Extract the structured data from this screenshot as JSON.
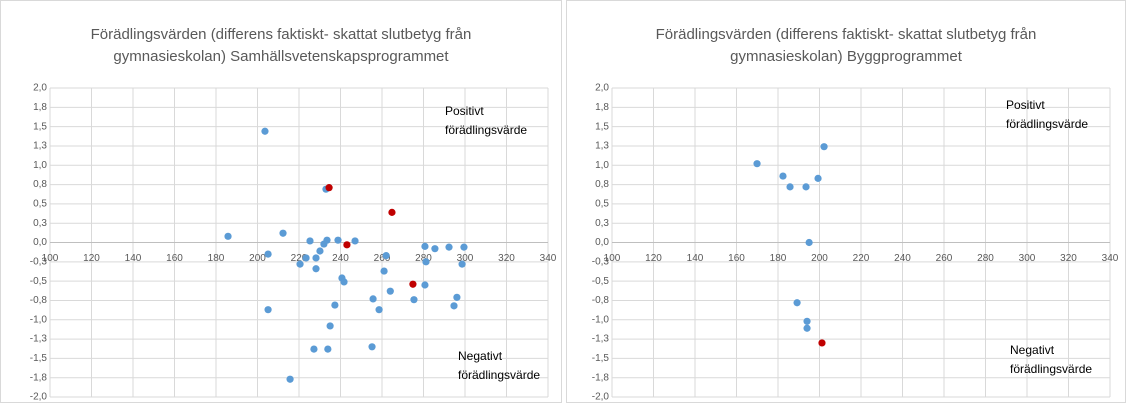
{
  "chart_data": [
    {
      "type": "scatter",
      "title": [
        "Förädlingsvärden (differens faktiskt- skattat slutbetyg från",
        "gymnasieskolan) Samhällsvetenskapsprogrammet"
      ],
      "annotations": [
        [
          "Positivt",
          "förädlingsvärde"
        ],
        [
          "Negativt",
          "förädlingsvärde"
        ]
      ],
      "xlim": [
        100,
        340
      ],
      "xticks": [
        100,
        120,
        140,
        160,
        180,
        200,
        220,
        240,
        260,
        280,
        300,
        320,
        340
      ],
      "ylim": [
        -2,
        2
      ],
      "yticks": [
        {
          "value": -2,
          "label": "-2,0"
        },
        {
          "value": -1.75,
          "label": "-1,8"
        },
        {
          "value": -1.5,
          "label": "-1,5"
        },
        {
          "value": -1.25,
          "label": "-1,3"
        },
        {
          "value": -1,
          "label": "-1,0"
        },
        {
          "value": -0.75,
          "label": "-0,8"
        },
        {
          "value": -0.5,
          "label": "-0,5"
        },
        {
          "value": -0.25,
          "label": "-0,3"
        },
        {
          "value": 0,
          "label": "0,0"
        },
        {
          "value": 0.25,
          "label": "0,3"
        },
        {
          "value": 0.5,
          "label": "0,5"
        },
        {
          "value": 0.75,
          "label": "0,8"
        },
        {
          "value": 1,
          "label": "1,0"
        },
        {
          "value": 1.25,
          "label": "1,3"
        },
        {
          "value": 1.5,
          "label": "1,5"
        },
        {
          "value": 1.75,
          "label": "1,8"
        },
        {
          "value": 2,
          "label": "2,0"
        }
      ],
      "grid": true,
      "series": [
        {
          "color": "#5b9bd5",
          "x": [
            185.8,
            203.6,
            212.3,
            205.1,
            205.1,
            225.3,
            220.5,
            223.4,
            228.2,
            228.2,
            230.1,
            232.0,
            233.0,
            233.5,
            238.8,
            235.0,
            237.3,
            240.7,
            241.7,
            247.0,
            227.2,
            233.9,
            215.7,
            255.2,
            255.7,
            258.6,
            261.0,
            262.0,
            264.0,
            275.4,
            280.7,
            281.2,
            280.7,
            285.5,
            292.3,
            294.7,
            296.1,
            298.6,
            299.5
          ],
          "values": [
            0.08,
            1.44,
            0.12,
            -0.15,
            -0.87,
            0.02,
            -0.28,
            -0.2,
            -0.2,
            -0.34,
            -0.11,
            -0.02,
            0.69,
            0.03,
            0.03,
            -1.08,
            -0.81,
            -0.46,
            -0.51,
            0.02,
            -1.38,
            -1.38,
            -1.77,
            -1.35,
            -0.73,
            -0.87,
            -0.37,
            -0.17,
            -0.63,
            -0.74,
            -0.05,
            -0.25,
            -0.55,
            -0.08,
            -0.06,
            -0.82,
            -0.71,
            -0.28,
            -0.06
          ]
        },
        {
          "color": "#c00000",
          "x": [
            234.5,
            243.1,
            264.8,
            274.9
          ],
          "values": [
            0.71,
            -0.03,
            0.39,
            -0.54
          ]
        }
      ]
    },
    {
      "type": "scatter",
      "title": [
        "Förädlingsvärden (differens faktiskt- skattat slutbetyg från",
        "gymnasieskolan) Byggprogrammet"
      ],
      "annotations": [
        [
          "Positivt",
          "förädlingsvärde"
        ],
        [
          "Negativt",
          "förädlingsvärde"
        ]
      ],
      "xlim": [
        100,
        340
      ],
      "xticks": [
        100,
        120,
        140,
        160,
        180,
        200,
        220,
        240,
        260,
        280,
        300,
        320,
        340
      ],
      "ylim": [
        -2,
        2
      ],
      "yticks": [
        {
          "value": -2,
          "label": "-2,0"
        },
        {
          "value": -1.75,
          "label": "-1,8"
        },
        {
          "value": -1.5,
          "label": "-1,5"
        },
        {
          "value": -1.25,
          "label": "-1,3"
        },
        {
          "value": -1,
          "label": "-1,0"
        },
        {
          "value": -0.75,
          "label": "-0,8"
        },
        {
          "value": -0.5,
          "label": "-0,5"
        },
        {
          "value": -0.25,
          "label": "-0,3"
        },
        {
          "value": 0,
          "label": "0,0"
        },
        {
          "value": 0.25,
          "label": "0,3"
        },
        {
          "value": 0.5,
          "label": "0,5"
        },
        {
          "value": 0.75,
          "label": "0,8"
        },
        {
          "value": 1,
          "label": "1,0"
        },
        {
          "value": 1.25,
          "label": "1,3"
        },
        {
          "value": 1.5,
          "label": "1,5"
        },
        {
          "value": 1.75,
          "label": "1,8"
        },
        {
          "value": 2,
          "label": "2,0"
        }
      ],
      "grid": true,
      "series": [
        {
          "color": "#5b9bd5",
          "x": [
            169.9,
            182.4,
            185.8,
            193.5,
            199.3,
            202.2,
            195.0,
            189.2,
            194.0,
            194.0
          ],
          "values": [
            1.02,
            0.86,
            0.72,
            0.72,
            0.83,
            1.24,
            0.0,
            -0.78,
            -1.02,
            -1.11
          ]
        },
        {
          "color": "#c00000",
          "x": [
            201.2
          ],
          "values": [
            -1.3
          ]
        }
      ]
    }
  ]
}
